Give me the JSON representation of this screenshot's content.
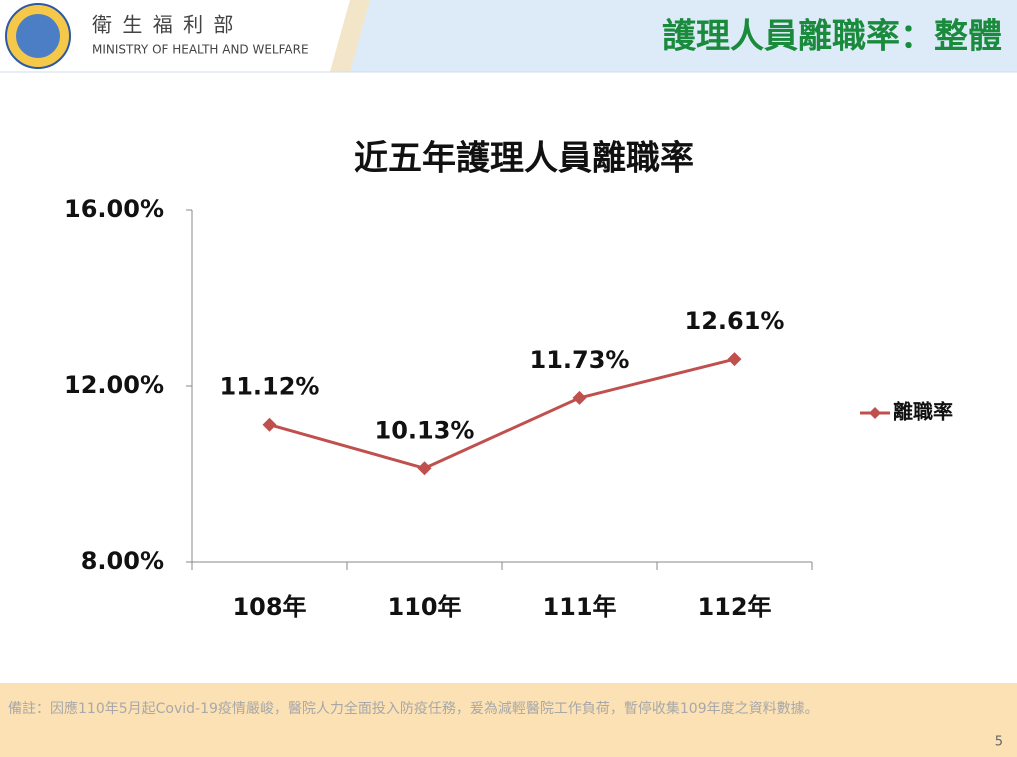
{
  "header": {
    "org_name": "衛 生 福 利 部",
    "org_name_en": "MINISTRY OF HEALTH AND WELFARE",
    "title": "護理人員離職率：整體"
  },
  "chart_data": {
    "type": "line",
    "title": "近五年護理人員離職率",
    "categories": [
      "108年",
      "110年",
      "111年",
      "112年"
    ],
    "series": [
      {
        "name": "離職率",
        "color": "#c0504d",
        "values": [
          11.12,
          10.13,
          11.73,
          12.61
        ],
        "value_labels": [
          "11.12%",
          "10.13%",
          "11.73%",
          "12.61%"
        ]
      }
    ],
    "ylim": [
      8,
      16
    ],
    "yticks": [
      {
        "value": 8,
        "label": "8.00%"
      },
      {
        "value": 12,
        "label": "12.00%"
      },
      {
        "value": 16,
        "label": "16.00%"
      }
    ],
    "legend": "right"
  },
  "footer": {
    "note": "備註：因應110年5月起Covid-19疫情嚴峻，醫院人力全面投入防疫任務，爰為減輕醫院工作負荷，暫停收集109年度之資料數據。",
    "page_number": "5"
  }
}
